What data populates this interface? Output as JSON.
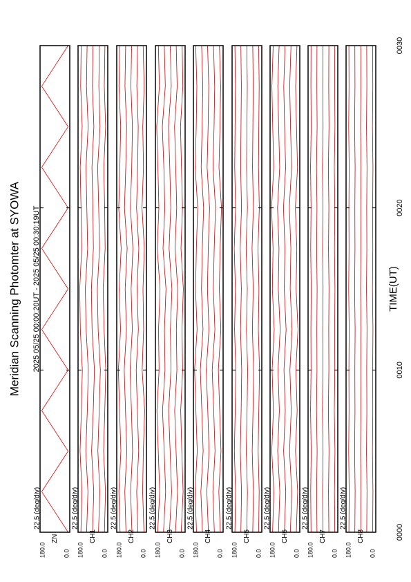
{
  "title": "Meridian Scanning Photomter at SYOWA",
  "subtitle": "2025 05/25 00:00:20UT - 2025 05/25 00:30:19UT",
  "x_label": "TIME(UT)",
  "x": [
    0,
    2.5,
    5,
    7.5,
    10,
    12.5,
    15,
    17.5,
    20,
    22.5,
    25,
    27.5,
    30
  ],
  "xlim": [
    0,
    30
  ],
  "xticks": [
    {
      "value": 0,
      "label": "0000"
    },
    {
      "value": 10,
      "label": "0010"
    },
    {
      "value": 20,
      "label": "0020"
    },
    {
      "value": 30,
      "label": "0030"
    }
  ],
  "chart_data": [
    {
      "type": "line",
      "channel": "ZN",
      "scale_label": "22.5 (deg/div)",
      "ylim": [
        0,
        180
      ],
      "yticks": [
        {
          "value": 180,
          "label": "180.0"
        },
        {
          "value": 0,
          "label": "0.0"
        }
      ],
      "series": [
        {
          "color": "#e00000",
          "values": [
            10,
            170,
            10,
            170,
            10,
            170,
            10,
            170,
            10,
            170,
            10,
            170,
            10
          ]
        }
      ]
    },
    {
      "type": "line",
      "channel": "CH1",
      "scale_label": "22.5 (deg/div)",
      "ylim": [
        0,
        180
      ],
      "yticks": [
        {
          "value": 180,
          "label": "180.0"
        },
        {
          "value": 0,
          "label": "0.0"
        }
      ],
      "series": [
        {
          "color": "#cc0000",
          "values": [
            20,
            14,
            25,
            18,
            12,
            22,
            28,
            16,
            19,
            24,
            13,
            21,
            17
          ]
        },
        {
          "color": "#cc0000",
          "values": [
            56,
            48,
            60,
            52,
            45,
            58,
            63,
            50,
            55,
            61,
            47,
            54,
            51
          ]
        },
        {
          "color": "#cc0000",
          "values": [
            92,
            85,
            98,
            88,
            81,
            95,
            99,
            87,
            90,
            96,
            84,
            93,
            89
          ]
        },
        {
          "color": "#cc0000",
          "values": [
            128,
            120,
            133,
            124,
            118,
            131,
            136,
            122,
            127,
            132,
            119,
            129,
            125
          ]
        },
        {
          "color": "#cc0000",
          "values": [
            163,
            156,
            168,
            160,
            154,
            166,
            170,
            158,
            162,
            167,
            155,
            164,
            161
          ]
        }
      ]
    },
    {
      "type": "line",
      "channel": "CH2",
      "scale_label": "22.5 (deg/div)",
      "ylim": [
        0,
        180
      ],
      "yticks": [
        {
          "value": 180,
          "label": "180.0"
        },
        {
          "value": 0,
          "label": "0.0"
        }
      ],
      "series": [
        {
          "color": "#cc0000",
          "values": [
            15,
            23,
            19,
            11,
            26,
            17,
            21,
            13,
            27,
            18,
            22,
            14,
            20
          ]
        },
        {
          "color": "#cc0000",
          "values": [
            52,
            59,
            47,
            55,
            62,
            49,
            57,
            46,
            60,
            53,
            50,
            58,
            54
          ]
        },
        {
          "color": "#cc0000",
          "values": [
            88,
            96,
            84,
            91,
            99,
            86,
            93,
            82,
            97,
            89,
            85,
            94,
            90
          ]
        },
        {
          "color": "#cc0000",
          "values": [
            124,
            131,
            119,
            127,
            135,
            121,
            129,
            117,
            133,
            125,
            120,
            130,
            126
          ]
        },
        {
          "color": "#cc0000",
          "values": [
            160,
            167,
            155,
            163,
            170,
            157,
            165,
            153,
            168,
            161,
            156,
            166,
            162
          ]
        }
      ]
    },
    {
      "type": "line",
      "channel": "CH3",
      "scale_label": "22.5 (deg/div)",
      "ylim": [
        0,
        180
      ],
      "yticks": [
        {
          "value": 180,
          "label": "180.0"
        },
        {
          "value": 0,
          "label": "0.0"
        }
      ],
      "series": [
        {
          "color": "#cc0000",
          "values": [
            24,
            12,
            20,
            27,
            15,
            19,
            11,
            25,
            16,
            22,
            28,
            14,
            18
          ]
        },
        {
          "color": "#cc0000",
          "values": [
            58,
            46,
            55,
            63,
            50,
            53,
            45,
            61,
            51,
            57,
            64,
            48,
            54
          ]
        },
        {
          "color": "#cc0000",
          "values": [
            95,
            82,
            91,
            100,
            86,
            89,
            80,
            97,
            87,
            93,
            101,
            84,
            90
          ]
        },
        {
          "color": "#cc0000",
          "values": [
            131,
            118,
            127,
            137,
            122,
            125,
            116,
            134,
            123,
            129,
            138,
            120,
            126
          ]
        },
        {
          "color": "#cc0000",
          "values": [
            166,
            154,
            163,
            171,
            158,
            161,
            152,
            169,
            159,
            165,
            172,
            156,
            162
          ]
        }
      ]
    },
    {
      "type": "line",
      "channel": "CH4",
      "scale_label": "22.5 (deg/div)",
      "ylim": [
        0,
        180
      ],
      "yticks": [
        {
          "value": 180,
          "label": "180.0"
        },
        {
          "value": 0,
          "label": "0.0"
        }
      ],
      "series": [
        {
          "color": "#cc0000",
          "values": [
            17,
            26,
            13,
            21,
            29,
            14,
            23,
            18,
            10,
            25,
            19,
            15,
            22
          ]
        },
        {
          "color": "#cc0000",
          "values": [
            53,
            62,
            49,
            57,
            66,
            50,
            59,
            54,
            46,
            61,
            55,
            51,
            58
          ]
        },
        {
          "color": "#cc0000",
          "values": [
            89,
            99,
            85,
            93,
            102,
            86,
            95,
            90,
            82,
            97,
            91,
            87,
            94
          ]
        },
        {
          "color": "#cc0000",
          "values": [
            125,
            135,
            121,
            129,
            138,
            122,
            131,
            126,
            118,
            133,
            127,
            123,
            130
          ]
        },
        {
          "color": "#cc0000",
          "values": [
            161,
            170,
            157,
            165,
            173,
            158,
            167,
            162,
            154,
            169,
            163,
            159,
            166
          ]
        }
      ]
    },
    {
      "type": "line",
      "channel": "CH5",
      "scale_label": "22.5 (deg/div)",
      "ylim": [
        0,
        180
      ],
      "yticks": [
        {
          "value": 180,
          "label": "180.0"
        },
        {
          "value": 0,
          "label": "0.0"
        }
      ],
      "series": [
        {
          "color": "#cc0000",
          "values": [
            19,
            16,
            22,
            18,
            14,
            21,
            17,
            23,
            15,
            20,
            18,
            16,
            19
          ]
        },
        {
          "color": "#cc0000",
          "values": [
            55,
            51,
            58,
            53,
            50,
            57,
            52,
            59,
            51,
            56,
            54,
            52,
            55
          ]
        },
        {
          "color": "#cc0000",
          "values": [
            91,
            87,
            94,
            89,
            86,
            93,
            88,
            95,
            87,
            92,
            90,
            88,
            91
          ]
        },
        {
          "color": "#cc0000",
          "values": [
            127,
            123,
            130,
            125,
            122,
            129,
            124,
            131,
            123,
            128,
            126,
            124,
            127
          ]
        },
        {
          "color": "#cc0000",
          "values": [
            163,
            159,
            166,
            161,
            158,
            165,
            160,
            167,
            159,
            164,
            162,
            160,
            163
          ]
        }
      ]
    },
    {
      "type": "line",
      "channel": "CH6",
      "scale_label": "22.5 (deg/div)",
      "ylim": [
        0,
        180
      ],
      "yticks": [
        {
          "value": 180,
          "label": "180.0"
        },
        {
          "value": 0,
          "label": "0.0"
        }
      ],
      "series": [
        {
          "color": "#cc0000",
          "values": [
            21,
            13,
            26,
            16,
            24,
            11,
            22,
            18,
            27,
            14,
            20,
            25,
            17
          ]
        },
        {
          "color": "#cc0000",
          "values": [
            57,
            49,
            62,
            52,
            60,
            47,
            58,
            54,
            63,
            50,
            56,
            61,
            53
          ]
        },
        {
          "color": "#cc0000",
          "values": [
            93,
            85,
            98,
            88,
            96,
            83,
            94,
            90,
            99,
            86,
            92,
            97,
            89
          ]
        },
        {
          "color": "#cc0000",
          "values": [
            129,
            121,
            134,
            124,
            132,
            119,
            130,
            126,
            135,
            122,
            128,
            133,
            125
          ]
        },
        {
          "color": "#cc0000",
          "values": [
            165,
            157,
            170,
            160,
            168,
            155,
            166,
            162,
            171,
            158,
            164,
            169,
            161
          ]
        }
      ]
    },
    {
      "type": "line",
      "channel": "CH7",
      "scale_label": "22.5 (deg/div)",
      "ylim": [
        0,
        180
      ],
      "yticks": [
        {
          "value": 180,
          "label": "180.0"
        },
        {
          "value": 0,
          "label": "0.0"
        }
      ],
      "series": [
        {
          "color": "#cc0000",
          "values": [
            18,
            20,
            17,
            21,
            18,
            19,
            17,
            20,
            18,
            21,
            17,
            19,
            18
          ]
        },
        {
          "color": "#cc0000",
          "values": [
            54,
            56,
            53,
            57,
            54,
            55,
            53,
            56,
            54,
            57,
            53,
            55,
            54
          ]
        },
        {
          "color": "#cc0000",
          "values": [
            90,
            92,
            89,
            93,
            90,
            91,
            89,
            92,
            90,
            93,
            89,
            91,
            90
          ]
        },
        {
          "color": "#cc0000",
          "values": [
            126,
            128,
            125,
            129,
            126,
            127,
            125,
            128,
            126,
            129,
            125,
            127,
            126
          ]
        },
        {
          "color": "#cc0000",
          "values": [
            162,
            164,
            161,
            165,
            162,
            163,
            161,
            164,
            162,
            165,
            161,
            163,
            162
          ]
        }
      ]
    },
    {
      "type": "line",
      "channel": "CH8",
      "scale_label": "22.5 (deg/div)",
      "ylim": [
        0,
        180
      ],
      "yticks": [
        {
          "value": 180,
          "label": "180.0"
        },
        {
          "value": 0,
          "label": "0.0"
        }
      ],
      "series": [
        {
          "color": "#cc0000",
          "values": [
            19,
            17,
            20,
            18,
            19,
            17,
            20,
            18,
            19,
            17,
            20,
            18,
            19
          ]
        },
        {
          "color": "#cc0000",
          "values": [
            55,
            53,
            56,
            54,
            55,
            53,
            56,
            54,
            55,
            53,
            56,
            54,
            55
          ]
        },
        {
          "color": "#cc0000",
          "values": [
            91,
            89,
            92,
            90,
            91,
            89,
            92,
            90,
            91,
            89,
            92,
            90,
            91
          ]
        },
        {
          "color": "#cc0000",
          "values": [
            127,
            125,
            128,
            126,
            127,
            125,
            128,
            126,
            127,
            125,
            128,
            126,
            127
          ]
        },
        {
          "color": "#cc0000",
          "values": [
            163,
            161,
            164,
            162,
            163,
            161,
            164,
            162,
            163,
            161,
            164,
            162,
            163
          ]
        }
      ]
    }
  ]
}
